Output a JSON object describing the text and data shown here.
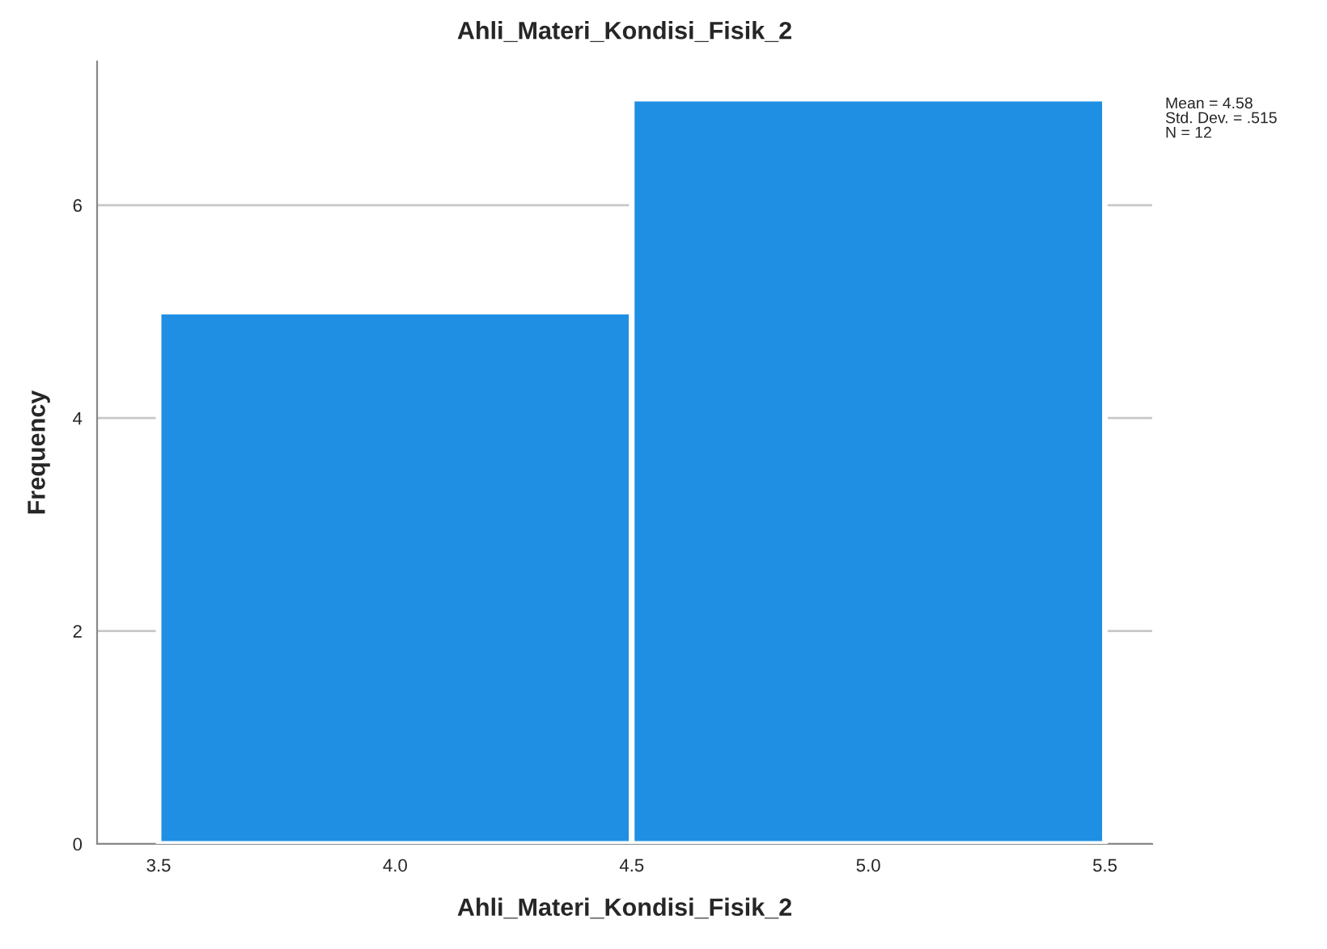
{
  "chart_data": {
    "type": "histogram",
    "title": "Ahli_Materi_Kondisi_Fisik_2",
    "xlabel": "Ahli_Materi_Kondisi_Fisik_2",
    "ylabel": "Frequency",
    "bins": [
      3.5,
      4.5,
      5.5
    ],
    "values": [
      5,
      7
    ],
    "color": "#1f8fe3",
    "xlim": [
      3.37,
      5.6
    ],
    "xticks": [
      {
        "value": 3.5,
        "label": "3.5"
      },
      {
        "value": 4.0,
        "label": "4.0"
      },
      {
        "value": 4.5,
        "label": "4.5"
      },
      {
        "value": 5.0,
        "label": "5.0"
      },
      {
        "value": 5.5,
        "label": "5.5"
      }
    ],
    "ylim": [
      0,
      7.35
    ],
    "yticks": [
      0,
      2,
      4,
      6
    ],
    "grid": "y",
    "annotations": [
      "Mean = 4.58\nStd. Dev. = .515\nN = 12"
    ]
  }
}
